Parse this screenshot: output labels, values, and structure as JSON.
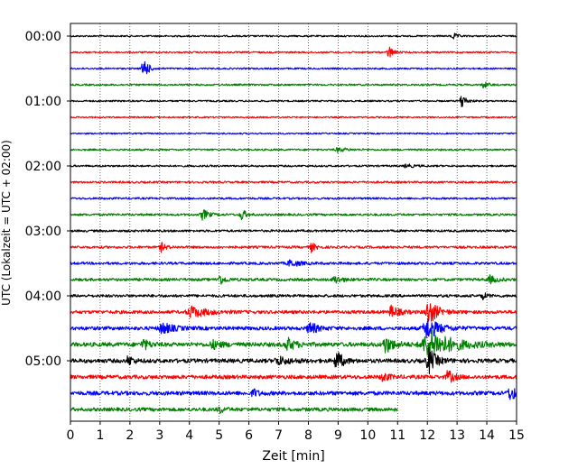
{
  "chart_data": {
    "type": "line",
    "subtype": "helicorder",
    "title": "",
    "xlabel": "Zeit  [min]",
    "ylabel": "UTC (Lokalzeit = UTC + 02:00)",
    "xlim": [
      0,
      15
    ],
    "x_ticks": [
      "0",
      "1",
      "2",
      "3",
      "4",
      "5",
      "6",
      "7",
      "8",
      "9",
      "10",
      "11",
      "12",
      "13",
      "14",
      "15"
    ],
    "y_tick_labels": [
      {
        "row": 0,
        "label": "00:00"
      },
      {
        "row": 4,
        "label": "01:00"
      },
      {
        "row": 8,
        "label": "02:00"
      },
      {
        "row": 12,
        "label": "03:00"
      },
      {
        "row": 16,
        "label": "04:00"
      },
      {
        "row": 20,
        "label": "05:00"
      }
    ],
    "row_minutes": 15,
    "color_cycle": [
      "#000000",
      "#ff0000",
      "#0000ff",
      "#008000"
    ],
    "grid": "vertical-dotted",
    "traces": [
      {
        "row": 0,
        "noise": 0.9,
        "end": 15,
        "events": [
          {
            "t": 12.85,
            "amp": 4,
            "dur": 0.3
          }
        ]
      },
      {
        "row": 1,
        "noise": 0.9,
        "end": 15,
        "events": [
          {
            "t": 10.7,
            "amp": 9,
            "dur": 0.25
          }
        ]
      },
      {
        "row": 2,
        "noise": 0.9,
        "end": 15,
        "events": [
          {
            "t": 2.45,
            "amp": 15,
            "dur": 0.3
          }
        ]
      },
      {
        "row": 3,
        "noise": 1.0,
        "end": 15,
        "events": [
          {
            "t": 13.9,
            "amp": 4,
            "dur": 0.3
          }
        ]
      },
      {
        "row": 4,
        "noise": 0.9,
        "end": 15,
        "events": [
          {
            "t": 13.15,
            "amp": 9,
            "dur": 0.3
          }
        ]
      },
      {
        "row": 5,
        "noise": 0.8,
        "end": 15,
        "events": []
      },
      {
        "row": 6,
        "noise": 0.8,
        "end": 15,
        "events": []
      },
      {
        "row": 7,
        "noise": 1.0,
        "end": 15,
        "events": [
          {
            "t": 9.0,
            "amp": 2.5,
            "dur": 0.6
          }
        ]
      },
      {
        "row": 8,
        "noise": 1.0,
        "end": 15,
        "events": [
          {
            "t": 11.3,
            "amp": 2,
            "dur": 0.5
          }
        ]
      },
      {
        "row": 9,
        "noise": 1.1,
        "end": 15,
        "events": []
      },
      {
        "row": 10,
        "noise": 1.1,
        "end": 15,
        "events": []
      },
      {
        "row": 11,
        "noise": 1.2,
        "end": 15,
        "events": [
          {
            "t": 4.45,
            "amp": 6,
            "dur": 0.4
          },
          {
            "t": 5.75,
            "amp": 7,
            "dur": 0.3
          }
        ]
      },
      {
        "row": 12,
        "noise": 1.2,
        "end": 15,
        "events": []
      },
      {
        "row": 13,
        "noise": 1.3,
        "end": 15,
        "events": [
          {
            "t": 3.05,
            "amp": 5,
            "dur": 0.3
          },
          {
            "t": 8.1,
            "amp": 5,
            "dur": 0.3
          }
        ]
      },
      {
        "row": 14,
        "noise": 1.4,
        "end": 15,
        "events": [
          {
            "t": 7.4,
            "amp": 4,
            "dur": 0.6
          }
        ]
      },
      {
        "row": 15,
        "noise": 1.5,
        "end": 15,
        "events": [
          {
            "t": 5.0,
            "amp": 6,
            "dur": 0.4
          },
          {
            "t": 8.9,
            "amp": 4,
            "dur": 0.5
          },
          {
            "t": 14.1,
            "amp": 4,
            "dur": 0.5
          }
        ]
      },
      {
        "row": 16,
        "noise": 1.5,
        "end": 15,
        "events": [
          {
            "t": 13.85,
            "amp": 4,
            "dur": 0.3
          }
        ]
      },
      {
        "row": 17,
        "noise": 1.8,
        "end": 15,
        "events": [
          {
            "t": 4.1,
            "amp": 6,
            "dur": 1.0
          },
          {
            "t": 10.8,
            "amp": 7,
            "dur": 0.5
          },
          {
            "t": 12.05,
            "amp": 14,
            "dur": 0.6
          }
        ]
      },
      {
        "row": 18,
        "noise": 2.0,
        "end": 15,
        "events": [
          {
            "t": 3.1,
            "amp": 6,
            "dur": 0.7
          },
          {
            "t": 8.05,
            "amp": 7,
            "dur": 0.5
          },
          {
            "t": 12.0,
            "amp": 12,
            "dur": 0.8
          }
        ]
      },
      {
        "row": 19,
        "noise": 2.3,
        "end": 15,
        "events": [
          {
            "t": 2.45,
            "amp": 6,
            "dur": 0.4
          },
          {
            "t": 4.8,
            "amp": 4,
            "dur": 0.6
          },
          {
            "t": 7.3,
            "amp": 7,
            "dur": 0.5
          },
          {
            "t": 10.6,
            "amp": 9,
            "dur": 0.6
          },
          {
            "t": 12.1,
            "amp": 15,
            "dur": 1.6
          }
        ]
      },
      {
        "row": 20,
        "noise": 2.2,
        "end": 15,
        "events": [
          {
            "t": 1.95,
            "amp": 6,
            "dur": 0.3
          },
          {
            "t": 7.0,
            "amp": 4,
            "dur": 0.8
          },
          {
            "t": 8.95,
            "amp": 12,
            "dur": 0.4
          },
          {
            "t": 12.05,
            "amp": 14,
            "dur": 0.5
          }
        ]
      },
      {
        "row": 21,
        "noise": 2.1,
        "end": 15,
        "events": [
          {
            "t": 10.5,
            "amp": 5,
            "dur": 0.4
          },
          {
            "t": 12.7,
            "amp": 7,
            "dur": 0.4
          }
        ]
      },
      {
        "row": 22,
        "noise": 2.2,
        "end": 15,
        "events": [
          {
            "t": 6.15,
            "amp": 5,
            "dur": 0.3
          },
          {
            "t": 14.8,
            "amp": 7,
            "dur": 0.6
          }
        ]
      },
      {
        "row": 23,
        "noise": 2.0,
        "end": 11.0,
        "events": [
          {
            "t": 5.0,
            "amp": 4,
            "dur": 0.3
          }
        ]
      }
    ]
  }
}
